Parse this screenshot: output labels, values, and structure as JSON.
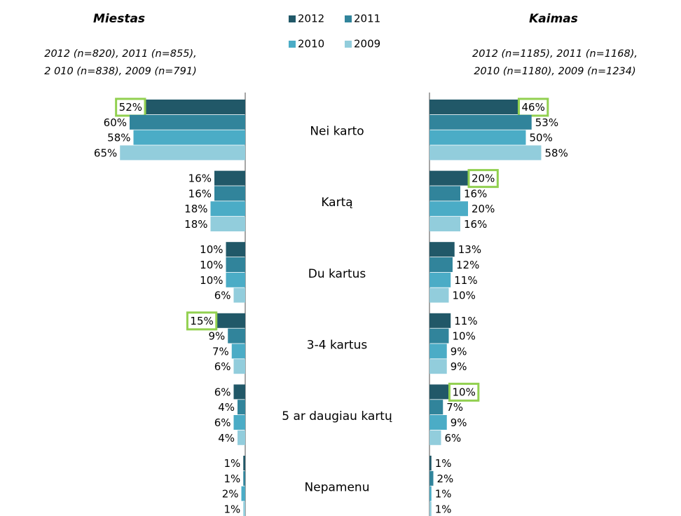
{
  "chart_data": {
    "type": "butterfly_bar",
    "categories": [
      "Nei karto",
      "Kartą",
      "Du kartus",
      "3-4 kartus",
      "5 ar daugiau kartų",
      "Nepamenu"
    ],
    "series": [
      {
        "name": "2012",
        "color": "#215868"
      },
      {
        "name": "2011",
        "color": "#31849b"
      },
      {
        "name": "2010",
        "color": "#4bacc6"
      },
      {
        "name": "2009",
        "color": "#92cddc"
      }
    ],
    "xlim": [
      0,
      100
    ],
    "highlight_color": "#92d050",
    "panels": [
      {
        "title": "Miestas",
        "subtitle": [
          "2012 (n=820), 2011 (n=855),",
          "2 010 (n=838),  2009 (n=791)"
        ],
        "values": [
          [
            52,
            16,
            10,
            15,
            6,
            1
          ],
          [
            60,
            16,
            10,
            9,
            4,
            1
          ],
          [
            58,
            18,
            10,
            7,
            6,
            2
          ],
          [
            65,
            18,
            6,
            6,
            4,
            1
          ]
        ],
        "value_labels": [
          [
            "52%",
            "16%",
            "10%",
            "15%",
            "6%",
            "1%"
          ],
          [
            "60%",
            "16%",
            "10%",
            "9%",
            "4%",
            "1%"
          ],
          [
            "58%",
            "18%",
            "10%",
            "7%",
            "6%",
            "2%"
          ],
          [
            "65%",
            "18%",
            "6%",
            "6%",
            "4%",
            "1%"
          ]
        ],
        "highlighted": [
          [
            0,
            0
          ],
          [
            0,
            3
          ]
        ]
      },
      {
        "title": "Kaimas",
        "subtitle": [
          "2012 (n=1185), 2011 (n=1168),",
          "2010 (n=1180), 2009 (n=1234)"
        ],
        "values": [
          [
            46,
            20,
            13,
            11,
            10,
            1
          ],
          [
            53,
            16,
            12,
            10,
            7,
            2
          ],
          [
            50,
            20,
            11,
            9,
            9,
            1
          ],
          [
            58,
            16,
            10,
            9,
            6,
            1
          ]
        ],
        "value_labels": [
          [
            "46%",
            "20%",
            "13%",
            "11%",
            "10%",
            "1%"
          ],
          [
            "53%",
            "16%",
            "12%",
            "10%",
            "7%",
            "2%"
          ],
          [
            "50%",
            "20%",
            "11%",
            "9%",
            "9%",
            "1%"
          ],
          [
            "58%",
            "16%",
            "10%",
            "9%",
            "6%",
            "1%"
          ]
        ],
        "highlighted": [
          [
            0,
            0
          ],
          [
            0,
            1
          ],
          [
            0,
            4
          ]
        ]
      }
    ]
  }
}
